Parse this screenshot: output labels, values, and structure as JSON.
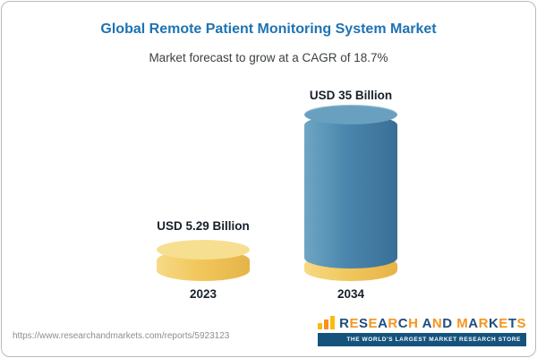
{
  "title": "Global Remote Patient Monitoring System Market",
  "subtitle": "Market forecast to grow at a CAGR of 18.7%",
  "chart_data": {
    "type": "bar",
    "bar_style": "3d-cylinder",
    "categories": [
      "2023",
      "2034"
    ],
    "values": [
      5.29,
      35
    ],
    "unit": "USD Billion",
    "value_labels": [
      "USD 5.29 Billion",
      "USD 35 Billion"
    ],
    "cagr_percent": 18.7,
    "title": "Global Remote Patient Monitoring System Market",
    "subtitle": "Market forecast to grow at a CAGR of 18.7%",
    "bar_colors": [
      "#f1c75c",
      "#4a86ad"
    ],
    "legend": false,
    "gridlines": false
  },
  "footer": {
    "url": "https://www.researchandmarkets.com/reports/5923123"
  },
  "logo": {
    "name": "RESEARCH AND MARKETS",
    "tagline": "THE WORLD'S LARGEST MARKET RESEARCH STORE",
    "letter_colors": [
      "#1c4e80",
      "#f7941d"
    ],
    "banner_color": "#15537d"
  },
  "colors": {
    "title_blue": "#1e73b2",
    "gold": "#f1c75c",
    "blue": "#4a86ad",
    "card_border": "#b7babe"
  }
}
